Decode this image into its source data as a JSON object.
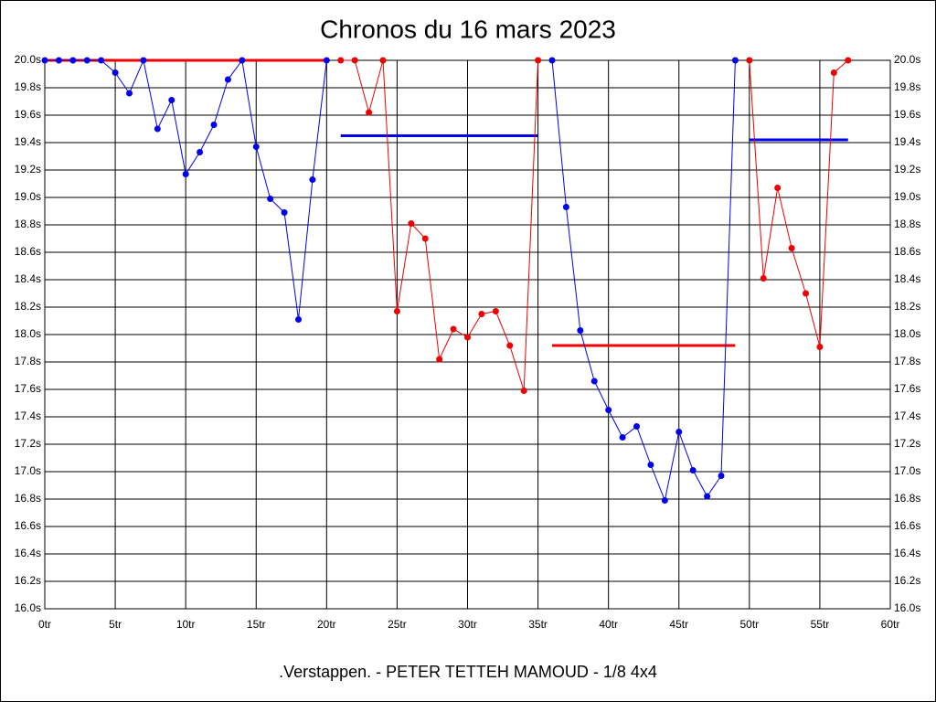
{
  "chart_data": {
    "type": "line",
    "title": "Chronos du 16 mars 2023",
    "footer": ".Verstappen. - PETER TETTEH MAMOUD - 1/8 4x4",
    "xlim": [
      0,
      60
    ],
    "ylim": [
      16,
      20
    ],
    "grid": true,
    "xticks": [
      {
        "value": 0,
        "label": "0tr"
      },
      {
        "value": 5,
        "label": "5tr"
      },
      {
        "value": 10,
        "label": "10tr"
      },
      {
        "value": 15,
        "label": "15tr"
      },
      {
        "value": 20,
        "label": "20tr"
      },
      {
        "value": 25,
        "label": "25tr"
      },
      {
        "value": 30,
        "label": "30tr"
      },
      {
        "value": 35,
        "label": "35tr"
      },
      {
        "value": 40,
        "label": "40tr"
      },
      {
        "value": 45,
        "label": "45tr"
      },
      {
        "value": 50,
        "label": "50tr"
      },
      {
        "value": 55,
        "label": "55tr"
      },
      {
        "value": 60,
        "label": "60tr"
      }
    ],
    "yticks": [
      {
        "value": 16.0,
        "label": "16.0s"
      },
      {
        "value": 16.2,
        "label": "16.2s"
      },
      {
        "value": 16.4,
        "label": "16.4s"
      },
      {
        "value": 16.6,
        "label": "16.6s"
      },
      {
        "value": 16.8,
        "label": "16.8s"
      },
      {
        "value": 17.0,
        "label": "17.0s"
      },
      {
        "value": 17.2,
        "label": "17.2s"
      },
      {
        "value": 17.4,
        "label": "17.4s"
      },
      {
        "value": 17.6,
        "label": "17.6s"
      },
      {
        "value": 17.8,
        "label": "17.8s"
      },
      {
        "value": 18.0,
        "label": "18.0s"
      },
      {
        "value": 18.2,
        "label": "18.2s"
      },
      {
        "value": 18.4,
        "label": "18.4s"
      },
      {
        "value": 18.6,
        "label": "18.6s"
      },
      {
        "value": 18.8,
        "label": "18.8s"
      },
      {
        "value": 19.0,
        "label": "19.0s"
      },
      {
        "value": 19.2,
        "label": "19.2s"
      },
      {
        "value": 19.4,
        "label": "19.4s"
      },
      {
        "value": 19.6,
        "label": "19.6s"
      },
      {
        "value": 19.8,
        "label": "19.8s"
      },
      {
        "value": 20.0,
        "label": "20.0s"
      }
    ],
    "series": [
      {
        "color": "#0000ee",
        "x": [
          0,
          1,
          2,
          3,
          4,
          5,
          6,
          7,
          8,
          9,
          10,
          11,
          12,
          13,
          14,
          15,
          16,
          17,
          18,
          19,
          20
        ],
        "values": [
          20.0,
          20.0,
          20.0,
          20.0,
          20.0,
          19.91,
          19.76,
          20.0,
          19.5,
          19.71,
          19.17,
          19.33,
          19.53,
          19.86,
          20.0,
          19.37,
          18.99,
          18.89,
          18.11,
          19.13,
          20.0
        ]
      },
      {
        "color": "#ee0000",
        "x": [
          21,
          22,
          23,
          24,
          25,
          26,
          27,
          28,
          29,
          30,
          31,
          32,
          33,
          34,
          35
        ],
        "values": [
          20.0,
          20.0,
          19.62,
          20.0,
          18.17,
          18.81,
          18.7,
          17.82,
          18.04,
          17.98,
          18.15,
          18.17,
          17.92,
          17.59,
          20.0
        ]
      },
      {
        "color": "#0000ee",
        "x": [
          36,
          37,
          38,
          39,
          40,
          41,
          42,
          43,
          44,
          45,
          46,
          47,
          48,
          49
        ],
        "values": [
          20.0,
          18.93,
          18.03,
          17.66,
          17.45,
          17.25,
          17.33,
          17.05,
          16.79,
          17.29,
          17.01,
          16.82,
          16.97,
          20.0
        ]
      },
      {
        "color": "#ee0000",
        "x": [
          50,
          51,
          52,
          53,
          54,
          55,
          56,
          57
        ],
        "values": [
          20.0,
          18.41,
          19.07,
          18.63,
          18.3,
          17.91,
          19.91,
          20.0
        ]
      }
    ],
    "reference_lines": [
      {
        "color": "#ee0000",
        "x": [
          0,
          20
        ],
        "value": 20.0
      },
      {
        "color": "#0000ee",
        "x": [
          21,
          35
        ],
        "value": 19.45
      },
      {
        "color": "#ee0000",
        "x": [
          36,
          49
        ],
        "value": 17.92
      },
      {
        "color": "#0000ee",
        "x": [
          50,
          57
        ],
        "value": 19.42
      }
    ]
  }
}
